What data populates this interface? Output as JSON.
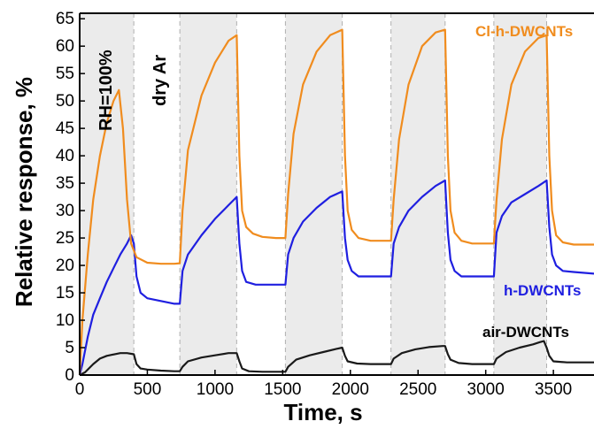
{
  "chart_data": {
    "type": "line",
    "xlabel": "Time, s",
    "ylabel": "Relative response, %",
    "xlim": [
      0,
      3800
    ],
    "ylim": [
      0,
      66
    ],
    "xticks": [
      0,
      500,
      1000,
      1500,
      2000,
      2500,
      3000,
      3500
    ],
    "yticks": [
      0,
      5,
      10,
      15,
      20,
      25,
      30,
      35,
      40,
      45,
      50,
      55,
      60,
      65
    ],
    "grid": false,
    "legend": "inline labels at right",
    "region_labels": [
      "RH=100%",
      "dry Ar"
    ],
    "humid_intervals": [
      [
        0,
        400
      ],
      [
        740,
        1160
      ],
      [
        1520,
        1940
      ],
      [
        2300,
        2700
      ],
      [
        3060,
        3450
      ]
    ],
    "series": [
      {
        "name": "Cl-h-DWCNTs",
        "color": "#f08c1e",
        "x": [
          0,
          20,
          60,
          100,
          150,
          200,
          250,
          290,
          320,
          350,
          380,
          420,
          500,
          600,
          700,
          740,
          760,
          800,
          900,
          1000,
          1100,
          1160,
          1180,
          1200,
          1230,
          1280,
          1350,
          1450,
          1520,
          1540,
          1580,
          1650,
          1750,
          1850,
          1940,
          1960,
          1980,
          2010,
          2060,
          2150,
          2250,
          2300,
          2320,
          2360,
          2430,
          2530,
          2630,
          2700,
          2720,
          2740,
          2770,
          2820,
          2900,
          3000,
          3060,
          3080,
          3120,
          3190,
          3290,
          3390,
          3450,
          3470,
          3490,
          3520,
          3570,
          3650,
          3800
        ],
        "y": [
          0,
          10,
          22,
          32,
          40,
          46,
          50,
          52,
          45,
          32,
          24,
          21.5,
          20.5,
          20.3,
          20.3,
          20.4,
          30,
          41,
          51,
          57,
          61,
          62,
          40,
          30,
          27,
          25.8,
          25.2,
          25,
          25,
          33,
          44,
          53,
          59,
          62,
          63,
          40,
          30,
          26.5,
          25,
          24.5,
          24.5,
          24.5,
          32,
          43,
          53,
          60,
          62.5,
          63,
          40,
          30,
          26,
          24.5,
          24,
          24,
          24,
          32,
          43,
          53,
          59,
          61.5,
          62,
          40,
          30,
          25.5,
          24.2,
          23.8,
          23.8
        ]
      },
      {
        "name": "h-DWCNTs",
        "color": "#1f1fe0",
        "x": [
          0,
          20,
          60,
          100,
          150,
          200,
          250,
          300,
          350,
          380,
          400,
          420,
          450,
          500,
          600,
          700,
          740,
          760,
          800,
          900,
          1000,
          1100,
          1160,
          1180,
          1200,
          1230,
          1300,
          1400,
          1520,
          1540,
          1580,
          1650,
          1750,
          1850,
          1940,
          1960,
          1980,
          2010,
          2060,
          2150,
          2250,
          2300,
          2320,
          2360,
          2430,
          2530,
          2630,
          2700,
          2720,
          2740,
          2770,
          2820,
          2900,
          3000,
          3060,
          3080,
          3120,
          3190,
          3290,
          3390,
          3450,
          3470,
          3490,
          3520,
          3570,
          3650,
          3800
        ],
        "y": [
          0,
          2,
          7,
          11,
          14,
          17,
          19.5,
          22,
          24,
          25.5,
          24,
          18,
          15,
          14,
          13.5,
          13,
          13,
          19,
          22,
          25.5,
          28.5,
          31,
          32.5,
          24,
          19,
          17,
          16.5,
          16.5,
          16.5,
          22,
          25,
          28,
          30.5,
          32.5,
          33.5,
          25,
          21,
          19,
          18,
          18,
          18,
          18,
          24,
          27,
          30,
          32.5,
          34.5,
          35.5,
          26,
          21,
          19,
          18,
          18,
          18,
          18,
          26,
          29,
          31.5,
          33,
          34.5,
          35.5,
          27,
          22,
          20,
          19,
          18.8,
          18.5
        ]
      },
      {
        "name": "air-DWCNTs",
        "color": "#1a1a1a",
        "x": [
          0,
          40,
          100,
          150,
          200,
          300,
          350,
          400,
          420,
          450,
          500,
          600,
          700,
          740,
          760,
          800,
          900,
          1000,
          1100,
          1160,
          1180,
          1200,
          1250,
          1350,
          1450,
          1520,
          1540,
          1600,
          1700,
          1800,
          1900,
          1940,
          1960,
          1980,
          2050,
          2150,
          2250,
          2300,
          2320,
          2380,
          2480,
          2580,
          2680,
          2700,
          2720,
          2740,
          2800,
          2900,
          3000,
          3060,
          3080,
          3150,
          3250,
          3350,
          3400,
          3430,
          3450,
          3470,
          3500,
          3600,
          3800
        ],
        "y": [
          0,
          0.5,
          2,
          3,
          3.5,
          4,
          4,
          3.8,
          2,
          1.2,
          1,
          0.8,
          0.7,
          0.7,
          1.5,
          2.5,
          3.2,
          3.6,
          4,
          4,
          2.5,
          1.2,
          0.7,
          0.6,
          0.6,
          0.6,
          1.5,
          2.8,
          3.6,
          4.2,
          4.8,
          5,
          3.5,
          2.5,
          2.1,
          2,
          2,
          2,
          3,
          4,
          4.7,
          5.1,
          5.3,
          5.3,
          3.8,
          2.8,
          2.2,
          2,
          2,
          2,
          3,
          4.2,
          5,
          5.6,
          6,
          6.2,
          5,
          3.5,
          2.5,
          2.3,
          2.3
        ]
      }
    ]
  }
}
